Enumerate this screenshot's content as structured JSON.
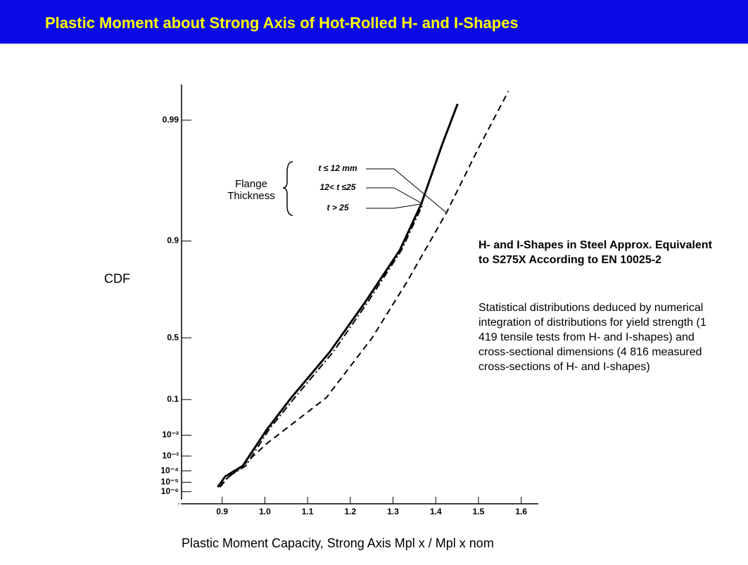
{
  "chart_data": {
    "type": "line",
    "title": "Plastic Moment about Strong Axis of Hot-Rolled H- and I-Shapes",
    "ylabel": "CDF",
    "xlabel": "Plastic Moment Capacity, Strong Axis  Mpl x / Mpl x nom",
    "yscale": "gumbel",
    "xlim": [
      0.8,
      1.64
    ],
    "ylim": [
      1e-07,
      0.995
    ],
    "xticks": [
      0.9,
      {
        "value": 1,
        "label": "1.0"
      },
      1.1,
      1.2,
      1.3,
      1.4,
      1.5,
      1.6
    ],
    "yticks": [
      0.99,
      0.9,
      0.5,
      0.1,
      {
        "value": 0.01,
        "label": "10⁻²"
      },
      {
        "value": 0.001,
        "label": "10⁻³"
      },
      {
        "value": 0.0001,
        "label": "10⁻⁴"
      },
      {
        "value": 1e-05,
        "label": "10⁻⁵"
      },
      {
        "value": 1e-06,
        "label": "10⁻⁶"
      }
    ],
    "legend_title": "Flange Thickness",
    "series": [
      {
        "name": "t ≤ 12 mm",
        "color": "#000000",
        "dash": "dashed",
        "x": [
          0.89,
          0.948,
          1.005,
          1.144,
          1.251,
          1.333,
          1.425,
          1.497,
          1.57
        ],
        "values": [
          4.5e-06,
          0.00023,
          0.0045,
          0.109,
          0.5,
          0.793,
          0.941,
          0.982,
          0.9943
        ]
      },
      {
        "name": "12< t ≤25",
        "color": "#000000",
        "dash": "dashdot",
        "x": [
          0.895,
          0.915,
          0.955,
          1.01,
          1.07,
          1.16,
          1.24,
          1.32,
          1.37
        ],
        "values": [
          3.2e-06,
          3.4e-05,
          0.00023,
          0.0164,
          0.109,
          0.402,
          0.705,
          0.882,
          0.95
        ]
      },
      {
        "name": "t > 25",
        "color": "#000000",
        "dash": "solid",
        "x": [
          0.89,
          0.907,
          0.948,
          1.005,
          1.062,
          1.152,
          1.234,
          1.316,
          1.366,
          1.415,
          1.451
        ],
        "values": [
          3.2e-06,
          3.4e-05,
          0.00023,
          0.0164,
          0.109,
          0.402,
          0.705,
          0.882,
          0.95,
          0.984,
          0.9927
        ]
      }
    ],
    "annotation_title": "H- and I-Shapes in Steel Approx. Equivalent to S275X According to EN 10025-2",
    "annotation_text": "Statistical distributions deduced by numerical integration of distributions for yield strength (1 419 tensile tests from H- and I-shapes) and cross-sectional dimensions  (4 816 measured cross-sections of H- and I-shapes)"
  }
}
